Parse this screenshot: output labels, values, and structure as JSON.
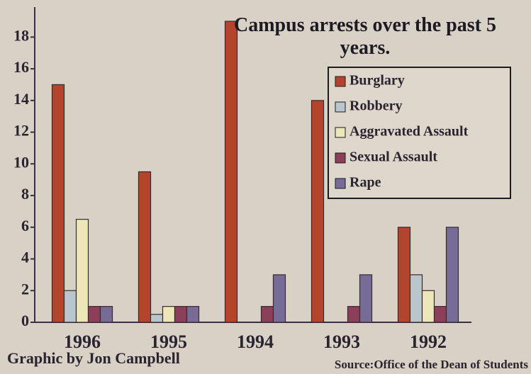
{
  "chart_data": {
    "type": "bar",
    "title": "Campus arrests over the past 5 years.",
    "credit": "Graphic by Jon Campbell",
    "source": "Source:Office of the Dean of Students",
    "categories": [
      "1996",
      "1995",
      "1994",
      "1993",
      "1992"
    ],
    "series": [
      {
        "name": "Burglary",
        "color": "#b4442c",
        "values": [
          15,
          9.5,
          19,
          14,
          6
        ]
      },
      {
        "name": "Robbery",
        "color": "#b9c6cc",
        "values": [
          2,
          0.5,
          0,
          0,
          3
        ]
      },
      {
        "name": "Aggravated Assault",
        "color": "#ece6b8",
        "values": [
          6.5,
          1,
          0,
          0,
          2
        ]
      },
      {
        "name": "Sexual Assault",
        "color": "#8c3f58",
        "values": [
          1,
          1,
          1,
          1,
          1
        ]
      },
      {
        "name": "Rape",
        "color": "#776c96",
        "values": [
          1,
          1,
          3,
          3,
          6
        ]
      }
    ],
    "ylim": [
      0,
      19
    ],
    "yticks": [
      0,
      2,
      4,
      6,
      8,
      10,
      12,
      14,
      16,
      18
    ],
    "legend": "top-right"
  }
}
